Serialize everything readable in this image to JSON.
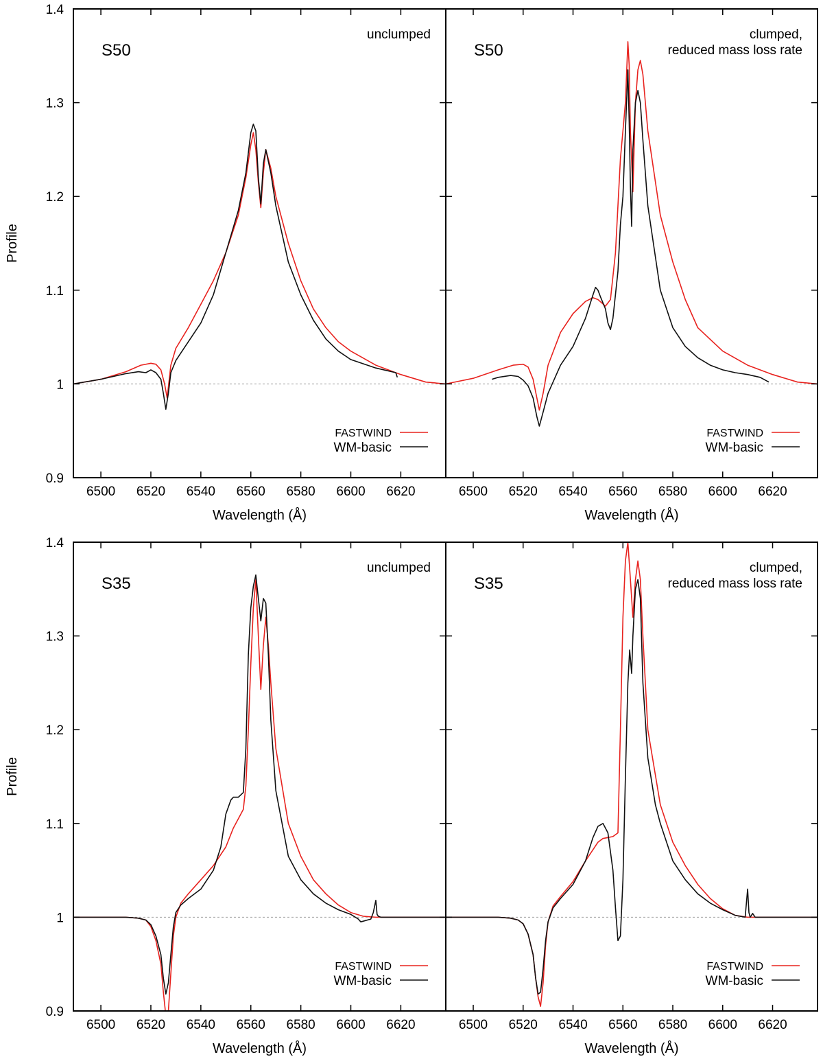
{
  "figure": {
    "description_label": "Halpha line profiles: FASTWIND vs WM-basic"
  },
  "chart_data": [
    {
      "type": "line",
      "panel": "top-left",
      "model_label": "S50",
      "note": [
        "unclumped"
      ],
      "xlabel": "Wavelength (Å)",
      "ylabel": "Profile",
      "xlim": [
        6489,
        6638
      ],
      "ylim": [
        0.9,
        1.4
      ],
      "xticks": [
        6500,
        6520,
        6540,
        6560,
        6580,
        6600,
        6620
      ],
      "yticks": [
        0.9,
        1.0,
        1.1,
        1.2,
        1.3,
        1.4
      ],
      "ytick_labels": [
        "0.9",
        "1",
        "1.1",
        "1.2",
        "1.3",
        "1.4"
      ],
      "show_yticklabels": true,
      "show_ylabel": true,
      "reference_line": 1.0,
      "legend": {
        "position": "bottom-right",
        "entries": [
          "FASTWIND",
          "WM-basic"
        ]
      },
      "series": [
        {
          "name": "FASTWIND",
          "color": "#e8231f",
          "x": [
            6489,
            6500,
            6510,
            6516,
            6520,
            6522,
            6524,
            6525.5,
            6526.5,
            6528,
            6530,
            6535,
            6540,
            6545,
            6550,
            6555,
            6558,
            6560,
            6561,
            6562,
            6563,
            6564,
            6565,
            6566,
            6568,
            6570,
            6575,
            6580,
            6585,
            6590,
            6595,
            6600,
            6610,
            6620,
            6630,
            6638
          ],
          "y": [
            1.0,
            1.005,
            1.013,
            1.02,
            1.022,
            1.021,
            1.015,
            1.0,
            0.985,
            1.02,
            1.038,
            1.06,
            1.085,
            1.11,
            1.14,
            1.18,
            1.22,
            1.255,
            1.268,
            1.25,
            1.215,
            1.188,
            1.225,
            1.25,
            1.23,
            1.2,
            1.15,
            1.11,
            1.08,
            1.06,
            1.045,
            1.035,
            1.02,
            1.01,
            1.002,
            1.0
          ]
        },
        {
          "name": "WM-basic",
          "color": "#111111",
          "x": [
            6489,
            6500,
            6505,
            6510,
            6515,
            6518,
            6520,
            6522,
            6524,
            6525,
            6526,
            6527,
            6528,
            6530,
            6535,
            6540,
            6545,
            6550,
            6555,
            6558,
            6560,
            6561,
            6562,
            6563,
            6564,
            6565,
            6566,
            6568,
            6570,
            6575,
            6580,
            6585,
            6590,
            6595,
            6600,
            6610,
            6618,
            6618.6
          ],
          "y": [
            1.0,
            1.005,
            1.008,
            1.011,
            1.013,
            1.012,
            1.015,
            1.012,
            1.005,
            0.99,
            0.973,
            0.99,
            1.012,
            1.025,
            1.045,
            1.065,
            1.095,
            1.14,
            1.185,
            1.225,
            1.268,
            1.277,
            1.27,
            1.22,
            1.192,
            1.235,
            1.25,
            1.225,
            1.19,
            1.13,
            1.095,
            1.068,
            1.048,
            1.035,
            1.026,
            1.017,
            1.012,
            1.007
          ]
        }
      ]
    },
    {
      "type": "line",
      "panel": "top-right",
      "model_label": "S50",
      "note": [
        "clumped,",
        "reduced mass loss rate"
      ],
      "xlabel": "Wavelength (Å)",
      "ylabel": "Profile",
      "xlim": [
        6489,
        6638
      ],
      "ylim": [
        0.9,
        1.4
      ],
      "xticks": [
        6500,
        6520,
        6540,
        6560,
        6580,
        6600,
        6620
      ],
      "yticks": [
        0.9,
        1.0,
        1.1,
        1.2,
        1.3,
        1.4
      ],
      "ytick_labels": [
        "0.9",
        "1",
        "1.1",
        "1.2",
        "1.3",
        "1.4"
      ],
      "show_yticklabels": false,
      "show_ylabel": false,
      "reference_line": 1.0,
      "legend": {
        "position": "bottom-right",
        "entries": [
          "FASTWIND",
          "WM-basic"
        ]
      },
      "series": [
        {
          "name": "FASTWIND",
          "color": "#e8231f",
          "x": [
            6489,
            6500,
            6510,
            6516,
            6520,
            6522,
            6524,
            6525.5,
            6526.5,
            6528,
            6530,
            6535,
            6540,
            6545,
            6548,
            6550,
            6553,
            6555,
            6557,
            6559,
            6560,
            6561,
            6562,
            6562.5,
            6563,
            6564,
            6565,
            6566,
            6567,
            6568,
            6570,
            6575,
            6580,
            6585,
            6590,
            6600,
            6610,
            6620,
            6630,
            6638
          ],
          "y": [
            1.0,
            1.006,
            1.015,
            1.02,
            1.021,
            1.018,
            1.005,
            0.985,
            0.972,
            0.99,
            1.02,
            1.055,
            1.075,
            1.088,
            1.092,
            1.09,
            1.083,
            1.09,
            1.14,
            1.24,
            1.27,
            1.3,
            1.365,
            1.34,
            1.27,
            1.205,
            1.3,
            1.335,
            1.345,
            1.33,
            1.27,
            1.18,
            1.13,
            1.09,
            1.06,
            1.035,
            1.02,
            1.01,
            1.002,
            1.0
          ]
        },
        {
          "name": "WM-basic",
          "color": "#111111",
          "x": [
            6507.5,
            6510,
            6515,
            6518,
            6520,
            6522,
            6524,
            6525.5,
            6526.5,
            6528,
            6530,
            6535,
            6540,
            6545,
            6548,
            6549,
            6550,
            6551,
            6553,
            6554,
            6555,
            6556,
            6558,
            6559,
            6560,
            6561,
            6562,
            6562.5,
            6563,
            6563.5,
            6564,
            6565,
            6566,
            6567,
            6568,
            6570,
            6575,
            6580,
            6585,
            6590,
            6595,
            6600,
            6605,
            6610,
            6615,
            6618.5
          ],
          "y": [
            1.005,
            1.007,
            1.009,
            1.008,
            1.004,
            0.998,
            0.985,
            0.965,
            0.955,
            0.97,
            0.99,
            1.02,
            1.04,
            1.07,
            1.095,
            1.103,
            1.1,
            1.093,
            1.08,
            1.065,
            1.058,
            1.07,
            1.12,
            1.17,
            1.2,
            1.27,
            1.335,
            1.28,
            1.21,
            1.168,
            1.25,
            1.3,
            1.313,
            1.3,
            1.26,
            1.19,
            1.1,
            1.06,
            1.04,
            1.028,
            1.02,
            1.015,
            1.012,
            1.01,
            1.007,
            1.002
          ]
        }
      ]
    },
    {
      "type": "line",
      "panel": "bottom-left",
      "model_label": "S35",
      "note": [
        "unclumped"
      ],
      "xlabel": "Wavelength (Å)",
      "ylabel": "Profile",
      "xlim": [
        6489,
        6638
      ],
      "ylim": [
        0.9,
        1.4
      ],
      "xticks": [
        6500,
        6520,
        6540,
        6560,
        6580,
        6600,
        6620
      ],
      "yticks": [
        0.9,
        1.0,
        1.1,
        1.2,
        1.3,
        1.4
      ],
      "ytick_labels": [
        "0.9",
        "1",
        "1.1",
        "1.2",
        "1.3",
        "1.4"
      ],
      "show_yticklabels": true,
      "show_ylabel": true,
      "reference_line": 1.0,
      "legend": {
        "position": "bottom-right",
        "entries": [
          "FASTWIND",
          "WM-basic"
        ]
      },
      "series": [
        {
          "name": "FASTWIND",
          "color": "#e8231f",
          "x": [
            6489,
            6500,
            6510,
            6515,
            6518,
            6520,
            6522,
            6524,
            6525,
            6526,
            6527,
            6528,
            6529,
            6530,
            6532,
            6535,
            6540,
            6545,
            6550,
            6553,
            6555,
            6557,
            6558,
            6559,
            6560,
            6561,
            6562,
            6563,
            6564,
            6565,
            6566,
            6567,
            6568,
            6570,
            6575,
            6580,
            6585,
            6590,
            6595,
            6600,
            6605,
            6610,
            6620,
            6638
          ],
          "y": [
            1.0,
            1.0,
            1.0,
            0.999,
            0.997,
            0.99,
            0.975,
            0.95,
            0.92,
            0.895,
            0.9,
            0.94,
            0.98,
            1.0,
            1.015,
            1.025,
            1.04,
            1.055,
            1.075,
            1.095,
            1.105,
            1.115,
            1.14,
            1.2,
            1.27,
            1.33,
            1.36,
            1.3,
            1.243,
            1.29,
            1.32,
            1.29,
            1.25,
            1.18,
            1.1,
            1.065,
            1.04,
            1.025,
            1.013,
            1.005,
            1.001,
            1.0,
            1.0,
            1.0
          ]
        },
        {
          "name": "WM-basic",
          "color": "#111111",
          "x": [
            6489,
            6500,
            6510,
            6515,
            6518,
            6520,
            6522,
            6524,
            6525,
            6526,
            6527,
            6528,
            6529,
            6530,
            6532,
            6535,
            6540,
            6545,
            6548,
            6550,
            6552,
            6553,
            6555,
            6557,
            6558,
            6559,
            6560,
            6561,
            6562,
            6563,
            6564,
            6565,
            6566,
            6567,
            6568,
            6570,
            6575,
            6580,
            6585,
            6590,
            6595,
            6600,
            6603,
            6604,
            6608,
            6609,
            6610,
            6610.5,
            6611,
            6612,
            6615,
            6620,
            6638
          ],
          "y": [
            1.0,
            1.0,
            1.0,
            0.999,
            0.997,
            0.992,
            0.98,
            0.96,
            0.935,
            0.918,
            0.93,
            0.96,
            0.99,
            1.005,
            1.013,
            1.02,
            1.03,
            1.05,
            1.075,
            1.11,
            1.125,
            1.128,
            1.128,
            1.133,
            1.18,
            1.28,
            1.33,
            1.353,
            1.365,
            1.34,
            1.316,
            1.34,
            1.335,
            1.28,
            1.21,
            1.135,
            1.065,
            1.04,
            1.025,
            1.015,
            1.008,
            1.003,
            0.998,
            0.995,
            0.998,
            1.005,
            1.018,
            1.003,
            1.001,
            1.0,
            1.0,
            1.0,
            1.0
          ]
        }
      ]
    },
    {
      "type": "line",
      "panel": "bottom-right",
      "model_label": "S35",
      "note": [
        "clumped,",
        "reduced mass loss rate"
      ],
      "xlabel": "Wavelength (Å)",
      "ylabel": "Profile",
      "xlim": [
        6489,
        6638
      ],
      "ylim": [
        0.9,
        1.4
      ],
      "xticks": [
        6500,
        6520,
        6540,
        6560,
        6580,
        6600,
        6620
      ],
      "yticks": [
        0.9,
        1.0,
        1.1,
        1.2,
        1.3,
        1.4
      ],
      "ytick_labels": [
        "0.9",
        "1",
        "1.1",
        "1.2",
        "1.3",
        "1.4"
      ],
      "show_yticklabels": false,
      "show_ylabel": false,
      "reference_line": 1.0,
      "legend": {
        "position": "bottom-right",
        "entries": [
          "FASTWIND",
          "WM-basic"
        ]
      },
      "series": [
        {
          "name": "FASTWIND",
          "color": "#e8231f",
          "x": [
            6489,
            6500,
            6510,
            6515,
            6518,
            6520,
            6522,
            6524,
            6525,
            6526,
            6527,
            6528,
            6529,
            6530,
            6532,
            6535,
            6540,
            6545,
            6550,
            6552,
            6554,
            6556,
            6558,
            6559,
            6560,
            6561,
            6562,
            6563,
            6564,
            6565,
            6566,
            6567,
            6568,
            6570,
            6575,
            6580,
            6585,
            6590,
            6595,
            6600,
            6605,
            6610,
            6620,
            6638
          ],
          "y": [
            1.0,
            1.0,
            1.0,
            0.999,
            0.997,
            0.993,
            0.982,
            0.96,
            0.935,
            0.915,
            0.905,
            0.93,
            0.97,
            0.995,
            1.012,
            1.022,
            1.038,
            1.06,
            1.08,
            1.084,
            1.085,
            1.086,
            1.09,
            1.2,
            1.32,
            1.38,
            1.4,
            1.36,
            1.32,
            1.36,
            1.38,
            1.36,
            1.3,
            1.2,
            1.12,
            1.08,
            1.055,
            1.035,
            1.02,
            1.009,
            1.002,
            1.0,
            1.0,
            1.0
          ]
        },
        {
          "name": "WM-basic",
          "color": "#111111",
          "x": [
            6489,
            6500,
            6510,
            6515,
            6518,
            6520,
            6522,
            6524,
            6525,
            6526,
            6527,
            6528,
            6529,
            6530,
            6532,
            6535,
            6540,
            6545,
            6548,
            6550,
            6552,
            6554,
            6556,
            6557,
            6558,
            6559,
            6560,
            6561,
            6562,
            6562.7,
            6563.5,
            6564,
            6565,
            6566,
            6567,
            6568,
            6570,
            6573,
            6575,
            6580,
            6585,
            6590,
            6595,
            6600,
            6605,
            6609,
            6610,
            6610.5,
            6611,
            6612,
            6613,
            6615,
            6620,
            6638
          ],
          "y": [
            1.0,
            1.0,
            1.0,
            0.999,
            0.997,
            0.993,
            0.982,
            0.96,
            0.935,
            0.918,
            0.92,
            0.945,
            0.975,
            0.995,
            1.01,
            1.02,
            1.035,
            1.06,
            1.085,
            1.097,
            1.1,
            1.09,
            1.05,
            1.01,
            0.975,
            0.98,
            1.04,
            1.15,
            1.25,
            1.285,
            1.26,
            1.3,
            1.35,
            1.36,
            1.34,
            1.25,
            1.17,
            1.12,
            1.1,
            1.06,
            1.04,
            1.025,
            1.015,
            1.008,
            1.002,
            1.0,
            1.03,
            1.005,
            1.0,
            1.004,
            1.0,
            1.0,
            1.0,
            1.0
          ]
        }
      ]
    }
  ]
}
